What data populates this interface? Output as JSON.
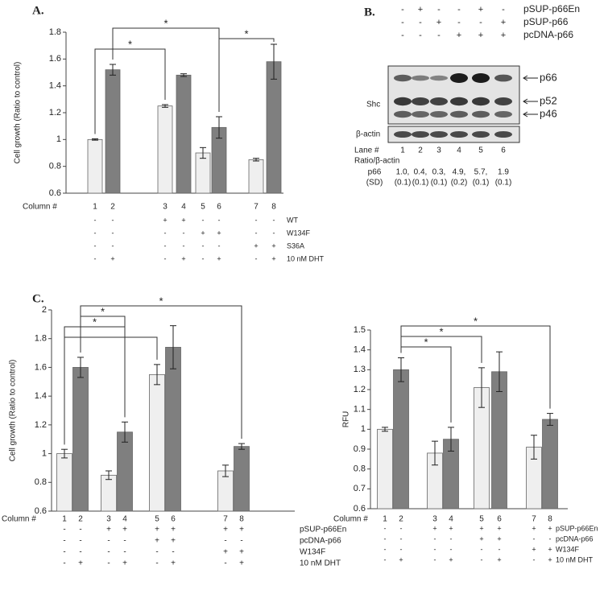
{
  "panel_labels": [
    "A.",
    "B.",
    "C."
  ],
  "chart_data": [
    {
      "type": "bar",
      "ylabel": "Cell growth (Ratio to control)",
      "xlabel": "Column #",
      "categories": [
        "1",
        "2",
        "3",
        "4",
        "5",
        "6",
        "7",
        "8"
      ],
      "values": [
        1.0,
        1.52,
        1.25,
        1.48,
        0.9,
        1.09,
        0.85,
        1.58
      ],
      "errors": [
        0.005,
        0.04,
        0.01,
        0.01,
        0.04,
        0.08,
        0.01,
        0.13
      ],
      "colors": [
        "#efefef",
        "#7f7f7f",
        "#efefef",
        "#7f7f7f",
        "#efefef",
        "#7f7f7f",
        "#efefef",
        "#7f7f7f"
      ],
      "ylim": [
        0.6,
        1.8
      ],
      "yticks": [
        0.6,
        0.8,
        1,
        1.2,
        1.4,
        1.6,
        1.8
      ],
      "brackets": [
        {
          "columns": [
            2,
            6
          ],
          "label": "*"
        },
        {
          "columns": [
            6,
            8
          ],
          "label": "*"
        },
        {
          "columns": [
            1,
            3
          ],
          "label": "*"
        }
      ],
      "conditions": [
        {
          "name": "WT",
          "marks": [
            "-",
            "-",
            "+",
            "+",
            "-",
            "-",
            "-",
            "-"
          ]
        },
        {
          "name": "W134F",
          "marks": [
            "-",
            "-",
            "-",
            "-",
            "+",
            "+",
            "-",
            "-"
          ]
        },
        {
          "name": "S36A",
          "marks": [
            "-",
            "-",
            "-",
            "-",
            "-",
            "-",
            "+",
            "+"
          ]
        },
        {
          "name": "10 nM DHT",
          "marks": [
            "-",
            "+",
            "-",
            "+",
            "-",
            "+",
            "-",
            "+"
          ]
        }
      ]
    },
    {
      "type": "bar",
      "ylabel": "Cell growth (Ratio to control)",
      "xlabel": "Column #",
      "categories": [
        "1",
        "2",
        "3",
        "4",
        "5",
        "6",
        "7",
        "8"
      ],
      "values": [
        1.0,
        1.6,
        0.85,
        1.15,
        1.55,
        1.74,
        0.88,
        1.05
      ],
      "errors": [
        0.03,
        0.07,
        0.03,
        0.07,
        0.07,
        0.15,
        0.04,
        0.02
      ],
      "colors": [
        "#efefef",
        "#7f7f7f",
        "#efefef",
        "#7f7f7f",
        "#efefef",
        "#7f7f7f",
        "#efefef",
        "#7f7f7f"
      ],
      "ylim": [
        0.6,
        2
      ],
      "yticks": [
        0.6,
        0.8,
        1,
        1.2,
        1.4,
        1.6,
        1.8,
        2
      ],
      "brackets": [
        {
          "columns": [
            2,
            8
          ],
          "label": "*"
        },
        {
          "columns": [
            2,
            4
          ],
          "label": "*"
        },
        {
          "columns": [
            1,
            4
          ],
          "label": "*"
        },
        {
          "columns": [
            1,
            5
          ]
        }
      ],
      "conditions": [
        {
          "name": "pSUP-p66En",
          "marks": [
            "-",
            "-",
            "+",
            "+",
            "+",
            "+",
            "+",
            "+"
          ]
        },
        {
          "name": "pcDNA-p66",
          "marks": [
            "-",
            "-",
            "-",
            "-",
            "+",
            "+",
            "-",
            "-"
          ]
        },
        {
          "name": "W134F",
          "marks": [
            "-",
            "-",
            "-",
            "-",
            "-",
            "-",
            "+",
            "+"
          ]
        },
        {
          "name": "10 nM DHT",
          "marks": [
            "-",
            "+",
            "-",
            "+",
            "-",
            "+",
            "-",
            "+"
          ]
        }
      ]
    },
    {
      "type": "bar",
      "ylabel": "RFU",
      "xlabel": "Column #",
      "categories": [
        "1",
        "2",
        "3",
        "4",
        "5",
        "6",
        "7",
        "8"
      ],
      "values": [
        1.0,
        1.3,
        0.88,
        0.95,
        1.21,
        1.29,
        0.91,
        1.05
      ],
      "errors": [
        0.01,
        0.06,
        0.06,
        0.06,
        0.1,
        0.1,
        0.06,
        0.03
      ],
      "colors": [
        "#efefef",
        "#7f7f7f",
        "#efefef",
        "#7f7f7f",
        "#efefef",
        "#7f7f7f",
        "#efefef",
        "#7f7f7f"
      ],
      "ylim": [
        0.6,
        1.5
      ],
      "yticks": [
        0.6,
        0.7,
        0.8,
        0.9,
        1,
        1.1,
        1.2,
        1.3,
        1.4,
        1.5
      ],
      "brackets": [
        {
          "columns": [
            2,
            8
          ],
          "label": "*"
        },
        {
          "columns": [
            2,
            5
          ],
          "label": "*"
        },
        {
          "columns": [
            2,
            4
          ],
          "label": "*"
        }
      ],
      "conditions": [
        {
          "name": "pSUP-p66En",
          "marks": [
            "-",
            "-",
            "+",
            "+",
            "+",
            "+",
            "+",
            "+"
          ]
        },
        {
          "name": "pcDNA-p66",
          "marks": [
            "-",
            "-",
            "-",
            "-",
            "+",
            "+",
            "-",
            "-"
          ]
        },
        {
          "name": "W134F",
          "marks": [
            "-",
            "-",
            "-",
            "-",
            "-",
            "-",
            "+",
            "+"
          ]
        },
        {
          "name": "10 nM DHT",
          "marks": [
            "-",
            "+",
            "-",
            "+",
            "-",
            "+",
            "-",
            "+"
          ]
        }
      ]
    }
  ],
  "blot": {
    "conditions": [
      {
        "name": "pSUP-p66En",
        "marks": [
          "-",
          "+",
          "-",
          "-",
          "+",
          "-"
        ]
      },
      {
        "name": "pSUP-p66",
        "marks": [
          "-",
          "-",
          "+",
          "-",
          "-",
          "+"
        ]
      },
      {
        "name": "pcDNA-p66",
        "marks": [
          "-",
          "-",
          "-",
          "+",
          "+",
          "+"
        ]
      }
    ],
    "bands": [
      "p66",
      "p52",
      "p46"
    ],
    "shc": "Shc",
    "loading": "β-actin",
    "lane_title": "Lane #",
    "lanes": [
      "1",
      "2",
      "3",
      "4",
      "5",
      "6"
    ],
    "ratio_title": "Ratio/β-actin",
    "ratio_rows": [
      {
        "name": "p66",
        "cells": [
          "1.0,",
          "0.4,",
          "0.3,",
          "4.9,",
          "5.7,",
          "1.9"
        ]
      },
      {
        "name": "(SD)",
        "cells": [
          "(0.1)",
          "(0.1)",
          "(0.1)",
          "(0.2)",
          "(0.1)",
          "(0.1)"
        ]
      }
    ]
  }
}
